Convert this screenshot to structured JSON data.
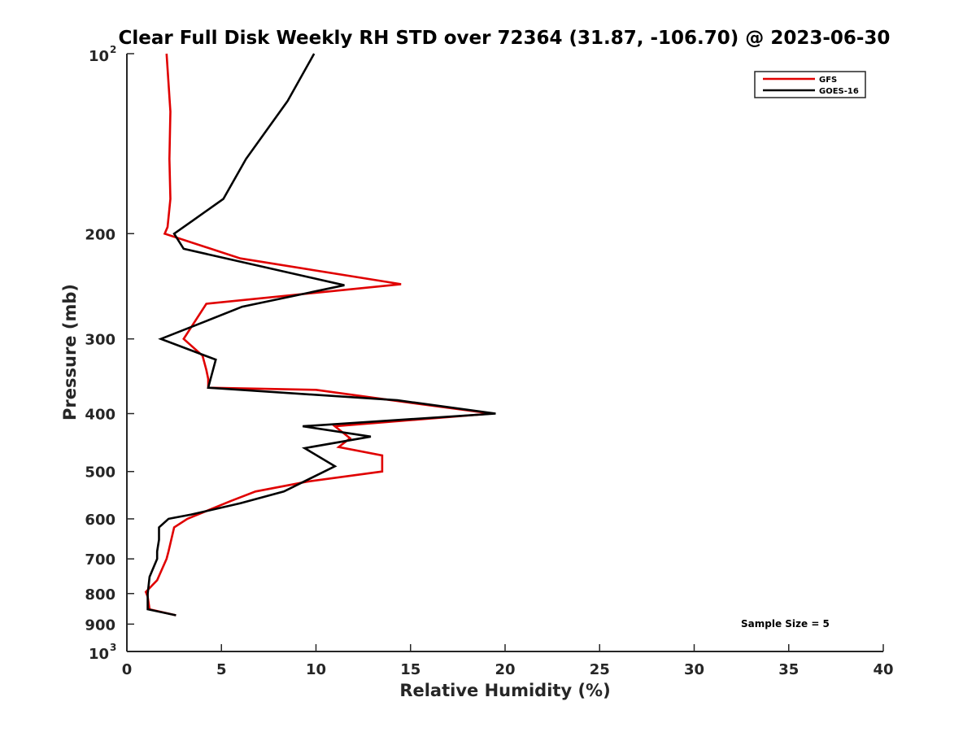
{
  "chart_data": {
    "type": "line",
    "title": "Clear Full Disk Weekly RH STD over 72364 (31.87, -106.70) @ 2023-06-30",
    "xlabel": "Relative Humidity (%)",
    "ylabel": "Pressure (mb)",
    "xlim": [
      0,
      40
    ],
    "ylim": [
      100,
      1000
    ],
    "y_scale": "log",
    "y_reversed": true,
    "x_ticks": [
      "0",
      "5",
      "10",
      "15",
      "20",
      "25",
      "30",
      "35",
      "40"
    ],
    "y_ticks": [
      {
        "value": 100,
        "label": "10",
        "exp": "2"
      },
      {
        "value": 200,
        "label": "200",
        "exp": ""
      },
      {
        "value": 300,
        "label": "300",
        "exp": ""
      },
      {
        "value": 400,
        "label": "400",
        "exp": ""
      },
      {
        "value": 500,
        "label": "500",
        "exp": ""
      },
      {
        "value": 600,
        "label": "600",
        "exp": ""
      },
      {
        "value": 700,
        "label": "700",
        "exp": ""
      },
      {
        "value": 800,
        "label": "800",
        "exp": ""
      },
      {
        "value": 900,
        "label": "900",
        "exp": ""
      },
      {
        "value": 1000,
        "label": "10",
        "exp": "3"
      }
    ],
    "grid": false,
    "legend_position": "top-right",
    "annotation": "Sample Size = 5",
    "series": [
      {
        "name": "GFS",
        "color": "#e00000",
        "points": [
          [
            2.1,
            100
          ],
          [
            2.3,
            125
          ],
          [
            2.25,
            150
          ],
          [
            2.3,
            175
          ],
          [
            2.15,
            195
          ],
          [
            2.0,
            200
          ],
          [
            6.0,
            220
          ],
          [
            14.5,
            243
          ],
          [
            4.2,
            262
          ],
          [
            3.0,
            300
          ],
          [
            4.0,
            320
          ],
          [
            4.2,
            338
          ],
          [
            4.3,
            350
          ],
          [
            4.3,
            362
          ],
          [
            10.0,
            365
          ],
          [
            14.0,
            380
          ],
          [
            19.3,
            400
          ],
          [
            11.0,
            420
          ],
          [
            11.8,
            440
          ],
          [
            11.2,
            455
          ],
          [
            13.5,
            470
          ],
          [
            13.5,
            500
          ],
          [
            9.5,
            520
          ],
          [
            6.8,
            540
          ],
          [
            5.5,
            560
          ],
          [
            3.2,
            600
          ],
          [
            2.5,
            620
          ],
          [
            2.2,
            680
          ],
          [
            2.1,
            700
          ],
          [
            1.6,
            760
          ],
          [
            1.0,
            795
          ],
          [
            1.1,
            810
          ],
          [
            1.2,
            850
          ],
          [
            2.6,
            870
          ]
        ]
      },
      {
        "name": "GOES-16",
        "color": "#000000",
        "points": [
          [
            9.9,
            100
          ],
          [
            8.5,
            120
          ],
          [
            6.3,
            150
          ],
          [
            5.1,
            175
          ],
          [
            3.5,
            190
          ],
          [
            2.5,
            200
          ],
          [
            3.0,
            212
          ],
          [
            11.5,
            244
          ],
          [
            6.1,
            265
          ],
          [
            4.2,
            280
          ],
          [
            1.8,
            300
          ],
          [
            4.7,
            325
          ],
          [
            4.3,
            362
          ],
          [
            14.3,
            380
          ],
          [
            19.5,
            400
          ],
          [
            9.3,
            420
          ],
          [
            12.9,
            437
          ],
          [
            9.4,
            457
          ],
          [
            11.0,
            490
          ],
          [
            8.3,
            540
          ],
          [
            6.0,
            565
          ],
          [
            3.4,
            590
          ],
          [
            2.2,
            600
          ],
          [
            1.7,
            620
          ],
          [
            1.7,
            650
          ],
          [
            1.6,
            680
          ],
          [
            1.6,
            700
          ],
          [
            1.2,
            750
          ],
          [
            1.1,
            800
          ],
          [
            1.1,
            850
          ],
          [
            2.6,
            870
          ]
        ]
      }
    ]
  }
}
